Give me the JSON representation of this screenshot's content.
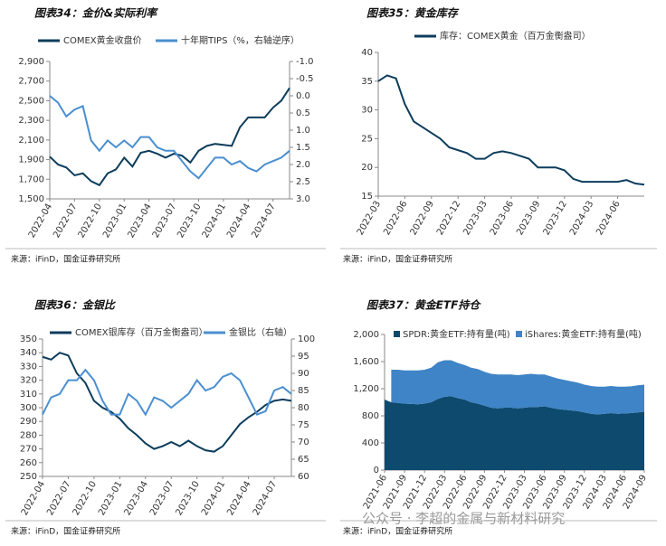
{
  "watermark": "公众号 · 李超的金属与新材料研究",
  "chart_data": [
    {
      "type": "line",
      "title": "图表34：金价&实际利率",
      "source": "来源：iFinD，国金证券研究所",
      "categories": [
        "2022-04",
        null,
        null,
        "2022-07",
        null,
        null,
        "2022-10",
        null,
        null,
        "2023-01",
        null,
        null,
        "2023-04",
        null,
        null,
        "2023-07",
        null,
        null,
        "2023-10",
        null,
        null,
        "2024-01",
        null,
        null,
        "2024-04",
        null,
        null,
        "2024-07",
        null,
        null
      ],
      "series": [
        {
          "name": "COMEX黄金收盘价",
          "color": "#0d3d5c",
          "values": [
            1930,
            1850,
            1820,
            1740,
            1760,
            1680,
            1640,
            1760,
            1800,
            1920,
            1830,
            1970,
            1990,
            1960,
            1920,
            1960,
            1940,
            1870,
            1990,
            2040,
            2060,
            2050,
            2040,
            2230,
            2330,
            2330,
            2330,
            2430,
            2500,
            2630
          ]
        },
        {
          "name": "十年期TIPS（%，右轴逆序）",
          "color": "#4a8fd0",
          "axis": "y2",
          "values": [
            0.0,
            0.2,
            0.6,
            0.4,
            0.3,
            1.3,
            1.6,
            1.3,
            1.5,
            1.3,
            1.5,
            1.2,
            1.2,
            1.5,
            1.6,
            1.6,
            1.9,
            2.2,
            2.4,
            2.1,
            1.8,
            1.8,
            2.0,
            1.9,
            2.1,
            2.2,
            2.0,
            1.9,
            1.8,
            1.6
          ]
        }
      ],
      "ylim": [
        1500,
        2900
      ],
      "yticks": [
        {
          "value": 1500,
          "label": "1,500"
        },
        {
          "value": 1700,
          "label": "1,700"
        },
        {
          "value": 1900,
          "label": "1,900"
        },
        {
          "value": 2100,
          "label": "2,100"
        },
        {
          "value": 2300,
          "label": "2,300"
        },
        {
          "value": 2500,
          "label": "2,500"
        },
        {
          "value": 2700,
          "label": "2,700"
        },
        {
          "value": 2900,
          "label": "2,900"
        }
      ],
      "y2lim": [
        3,
        -1
      ],
      "y2ticks": [
        {
          "value": -1,
          "label": "-1.0"
        },
        -0.5,
        {
          "value": 0,
          "label": "0.0"
        },
        0.5,
        {
          "value": 1,
          "label": "1.0"
        },
        1.5,
        {
          "value": 2,
          "label": "2.0"
        },
        2.5,
        {
          "value": 3,
          "label": "3.0"
        }
      ],
      "grid": false
    },
    {
      "type": "line",
      "title": "图表35：黄金库存",
      "source": "来源：iFinD，国金证券研究所",
      "categories": [
        "2022-03",
        null,
        null,
        "2022-06",
        null,
        null,
        "2022-09",
        null,
        null,
        "2022-12",
        null,
        null,
        "2023-03",
        null,
        null,
        "2023-06",
        null,
        null,
        "2023-09",
        null,
        null,
        "2023-12",
        null,
        null,
        "2024-03",
        null,
        null,
        "2024-06",
        null,
        null,
        null
      ],
      "series": [
        {
          "name": "库存：COMEX黄金（百万金衡盎司）",
          "color": "#0d3d5c",
          "values": [
            35,
            36,
            35.5,
            31,
            28,
            27,
            26,
            25,
            23.5,
            23,
            22.5,
            21.5,
            21.5,
            22.5,
            22.8,
            22.5,
            22,
            21.5,
            20,
            20,
            20,
            19.5,
            18,
            17.5,
            17.5,
            17.5,
            17.5,
            17.5,
            17.8,
            17.2,
            17
          ]
        }
      ],
      "ylim": [
        15,
        40
      ],
      "yticks": [
        15,
        20,
        25,
        30,
        35,
        40
      ],
      "grid": false
    },
    {
      "type": "line",
      "title": "图表36：金银比",
      "source": "来源：iFinD，国金证券研究所",
      "categories": [
        "2022-04",
        null,
        null,
        "2022-07",
        null,
        null,
        "2022-10",
        null,
        null,
        "2023-01",
        null,
        null,
        "2023-04",
        null,
        null,
        "2023-07",
        null,
        null,
        "2023-10",
        null,
        null,
        "2024-01",
        null,
        null,
        "2024-04",
        null,
        null,
        "2024-07",
        null,
        null
      ],
      "series": [
        {
          "name": "COMEX银库存（百万金衡盎司）",
          "color": "#0d3d5c",
          "values": [
            337,
            335,
            340,
            338,
            325,
            318,
            305,
            300,
            297,
            292,
            285,
            280,
            274,
            270,
            272,
            275,
            272,
            276,
            272,
            269,
            268,
            272,
            280,
            288,
            293,
            297,
            302,
            305,
            306,
            305
          ]
        },
        {
          "name": "金银比（右轴）",
          "color": "#4a8fd0",
          "axis": "y2",
          "values": [
            78,
            83,
            84,
            88,
            88,
            91,
            88,
            82,
            78,
            78,
            84,
            82,
            78,
            83,
            82,
            80,
            82,
            84,
            88,
            85,
            86,
            89,
            90,
            88,
            83,
            78,
            79,
            85,
            86,
            84
          ]
        }
      ],
      "ylim": [
        250,
        350
      ],
      "yticks": [
        250,
        260,
        270,
        280,
        290,
        300,
        310,
        320,
        330,
        340,
        350
      ],
      "y2lim": [
        60,
        100
      ],
      "y2ticks": [
        60,
        65,
        70,
        75,
        80,
        85,
        90,
        95,
        100
      ],
      "grid": false
    },
    {
      "type": "area",
      "title": "图表37：黄金ETF持仓",
      "source": "来源：iFinD，国金证券研究所",
      "categories": [
        "2021-06",
        null,
        null,
        "2021-09",
        null,
        null,
        "2021-12",
        null,
        null,
        "2022-03",
        null,
        null,
        "2022-06",
        null,
        null,
        "2022-09",
        null,
        null,
        "2022-12",
        null,
        null,
        "2023-03",
        null,
        null,
        "2023-06",
        null,
        null,
        "2023-09",
        null,
        null,
        "2023-12",
        null,
        null,
        "2024-03",
        null,
        null,
        "2024-06",
        null,
        null,
        "2024-09"
      ],
      "series": [
        {
          "name": "SPDR:黄金ETF:持有量(吨)",
          "color": "#0d4a6e",
          "values": [
            1040,
            1000,
            990,
            980,
            975,
            970,
            980,
            1000,
            1050,
            1080,
            1090,
            1060,
            1040,
            1000,
            980,
            950,
            920,
            910,
            920,
            920,
            910,
            920,
            930,
            930,
            940,
            920,
            900,
            890,
            880,
            870,
            850,
            830,
            820,
            830,
            840,
            830,
            835,
            840,
            850,
            860
          ]
        },
        {
          "name": "iShares:黄金ETF:持有量(吨)",
          "color": "#3f84c6",
          "values": [
            null,
            480,
            490,
            490,
            495,
            500,
            500,
            510,
            540,
            540,
            530,
            520,
            510,
            510,
            510,
            500,
            500,
            500,
            490,
            490,
            490,
            490,
            490,
            480,
            470,
            460,
            450,
            440,
            430,
            420,
            410,
            410,
            410,
            400,
            400,
            400,
            395,
            395,
            400,
            400
          ]
        }
      ],
      "ylim": [
        0,
        2000
      ],
      "yticks": [
        0,
        400,
        800,
        {
          "value": 1200,
          "label": "1,200"
        },
        {
          "value": 1600,
          "label": "1,600"
        },
        {
          "value": 2000,
          "label": "2,000"
        }
      ],
      "grid": false
    }
  ]
}
